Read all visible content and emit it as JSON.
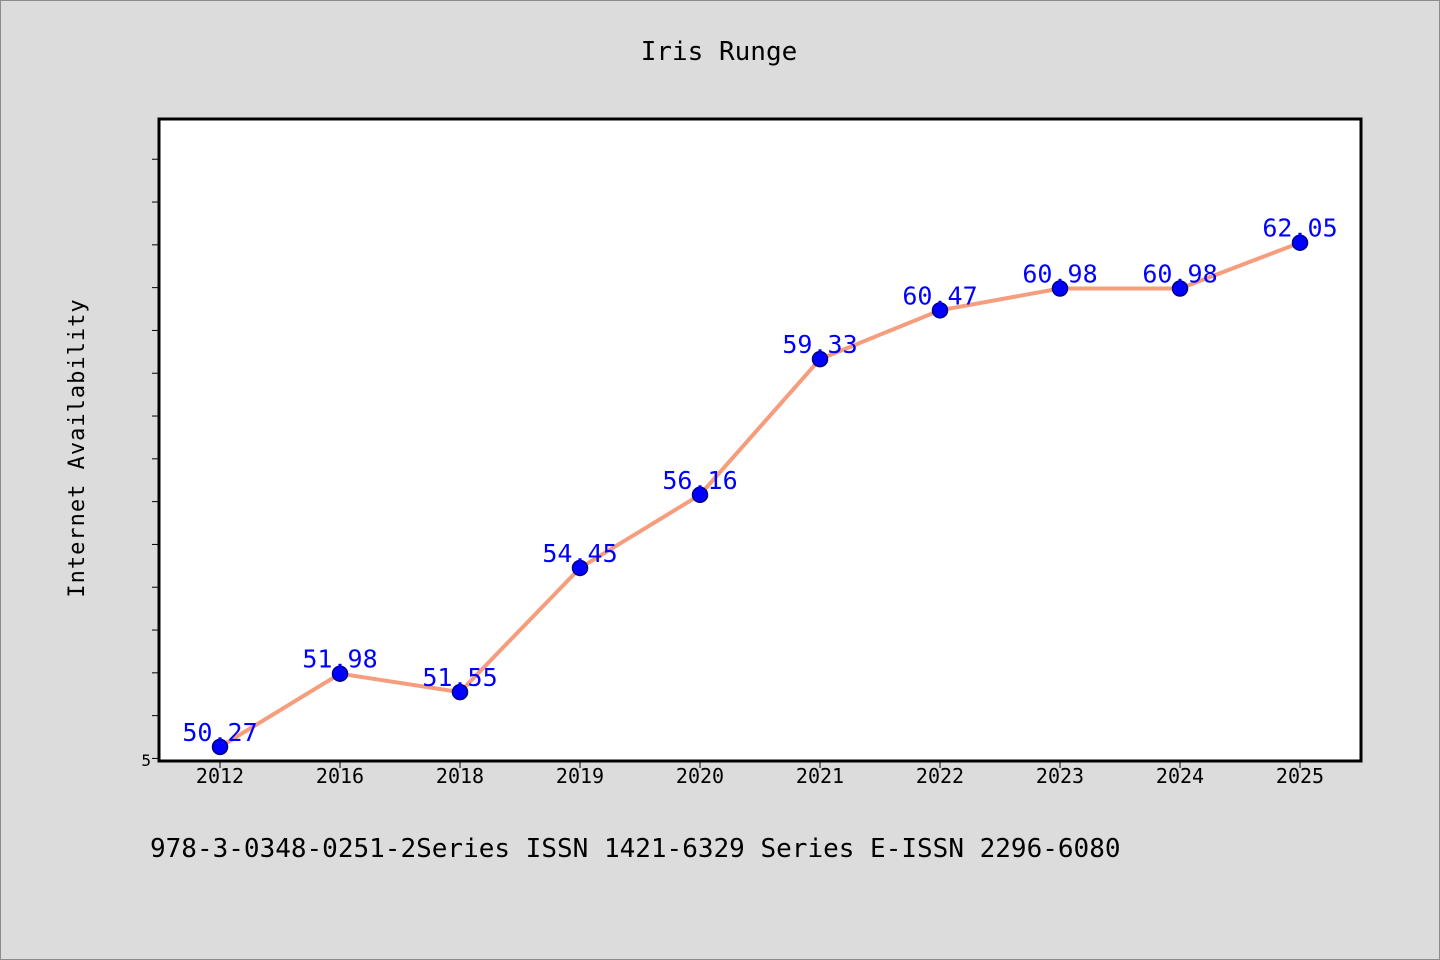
{
  "chart_data": {
    "type": "line",
    "title": "Iris Runge",
    "xlabel": "",
    "ylabel": "Internet Availability",
    "categories": [
      "2012",
      "2016",
      "2018",
      "2019",
      "2020",
      "2021",
      "2022",
      "2023",
      "2024",
      "2025"
    ],
    "series": [
      {
        "values": [
          50.27,
          51.98,
          51.55,
          54.45,
          56.16,
          59.33,
          60.47,
          60.98,
          60.98,
          62.05
        ],
        "labels": [
          "50.27",
          "51.98",
          "51.55",
          "54.45",
          "56.16",
          "59.33",
          "60.47",
          "60.98",
          "60.98",
          "62.05"
        ]
      }
    ],
    "ylim": [
      49.94,
      64.94
    ],
    "ytick_labels": [
      "5"
    ],
    "ytick_step": 1,
    "grid": false,
    "colors": {
      "line": "#f59d7c",
      "marker": "#0000ff",
      "marker_edge": "#000080",
      "data_label": "#0000ff",
      "plot_background": "#ffffff",
      "page_background": "#dcdcdc"
    }
  },
  "footer": {
    "text": "978-3-0348-0251-2Series ISSN 1421-6329 Series E-ISSN 2296-6080"
  }
}
